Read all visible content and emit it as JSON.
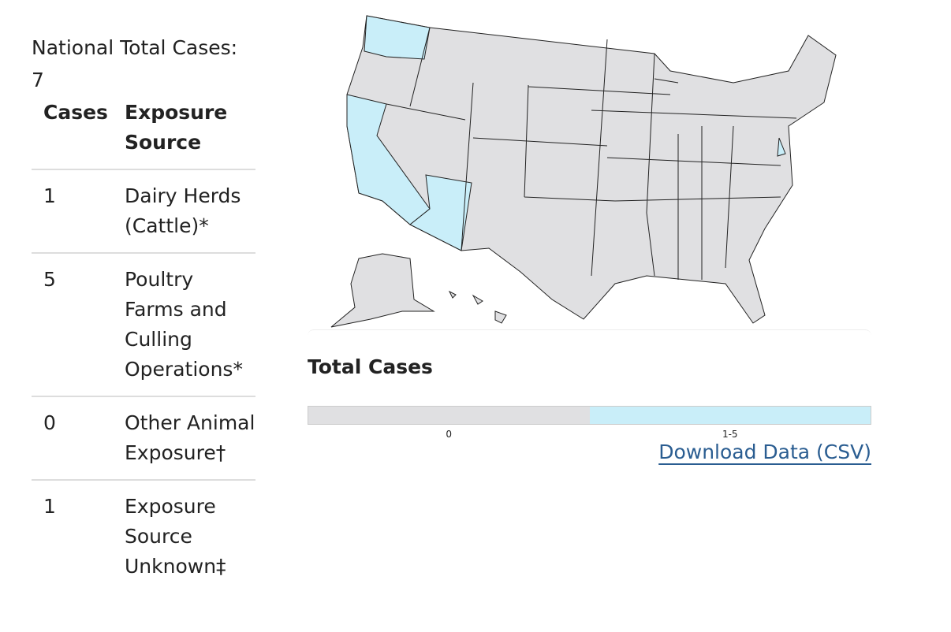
{
  "national_total": {
    "label": "National Total Cases:",
    "value": "7"
  },
  "table": {
    "headers": [
      "Cases",
      "Exposure Source"
    ],
    "rows": [
      [
        "1",
        "Dairy Herds (Cattle)*"
      ],
      [
        "5",
        "Poultry Farms and Culling Operations*"
      ],
      [
        "0",
        "Other Animal Exposure†"
      ],
      [
        "1",
        "Exposure Source Unknown‡"
      ]
    ]
  },
  "legend": {
    "title": "Total Cases",
    "items": [
      {
        "label": "0",
        "color": "#e0e0e2"
      },
      {
        "label": "1-5",
        "color": "#c9eef9"
      }
    ]
  },
  "link": "Download Data (CSV)"
}
